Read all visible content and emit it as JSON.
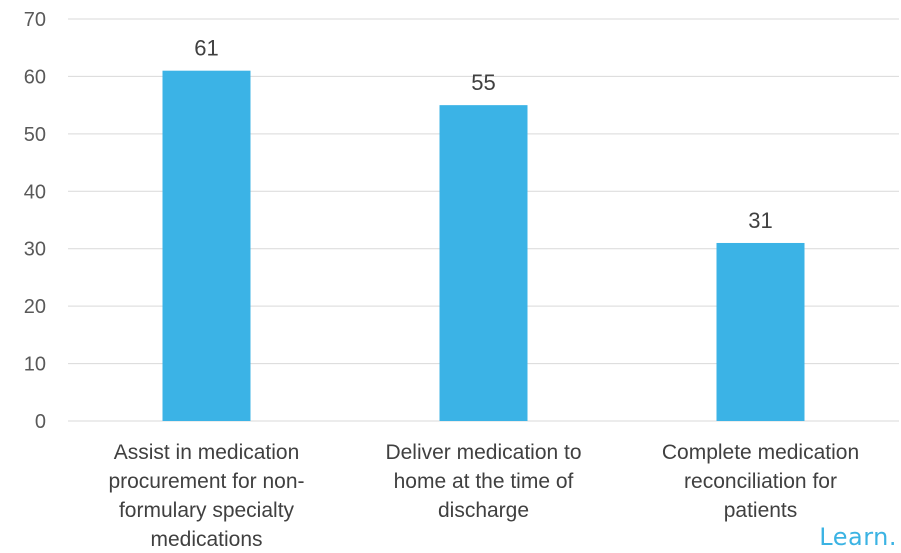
{
  "chart_data": {
    "type": "bar",
    "categories": [
      [
        "Assist in medication",
        "procurement for non-",
        "formulary specialty",
        "medications"
      ],
      [
        "Deliver medication to",
        "home at the time of",
        "discharge"
      ],
      [
        "Complete medication",
        "reconciliation for",
        "patients"
      ]
    ],
    "values": [
      61,
      55,
      31
    ],
    "value_labels": [
      "61",
      "55",
      "31"
    ],
    "ylim": [
      0,
      70
    ],
    "yticks": [
      0,
      10,
      20,
      30,
      40,
      50,
      60,
      70
    ],
    "ytick_labels": [
      "0",
      "10",
      "20",
      "30",
      "40",
      "50",
      "60",
      "70"
    ],
    "bar_color": "#3bb3e6",
    "grid": true,
    "grid_color": "#d9d9d9"
  },
  "logo": {
    "text": "Learn."
  }
}
